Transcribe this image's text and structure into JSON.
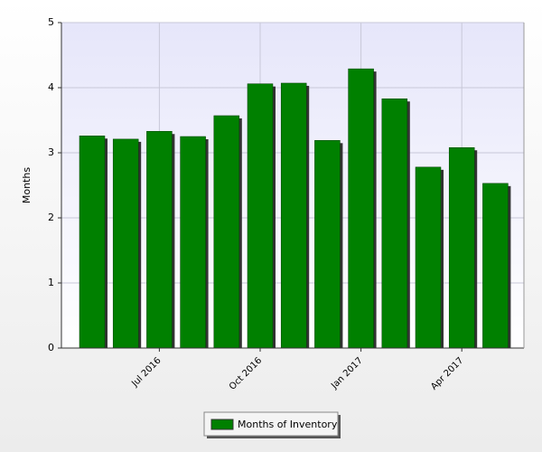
{
  "chart_data": {
    "type": "bar",
    "y_label": "Months",
    "categories": [
      null,
      null,
      "Jul 2016",
      null,
      null,
      "Oct 2016",
      null,
      null,
      "Jan 2017",
      null,
      null,
      "Apr 2017",
      null
    ],
    "series": [
      {
        "name": "Months of Inventory",
        "color": "#008000",
        "values": [
          3.26,
          3.21,
          3.33,
          3.25,
          3.57,
          4.06,
          4.07,
          3.19,
          4.29,
          3.83,
          2.78,
          3.08,
          2.53
        ]
      }
    ],
    "ylim": [
      0,
      5
    ],
    "yticks": [
      0,
      1,
      2,
      3,
      4,
      5
    ],
    "grid": true
  }
}
